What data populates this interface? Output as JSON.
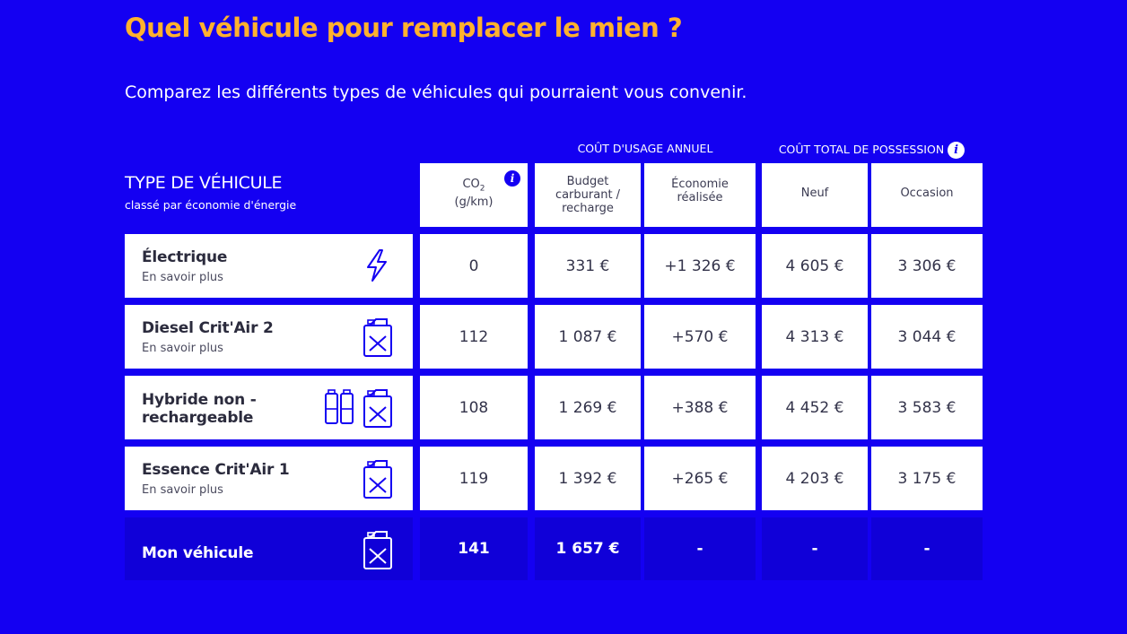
{
  "page": {
    "title": "Quel véhicule pour remplacer le mien ?",
    "subtitle": "Comparez les différents types de véhicules qui pourraient vous convenir."
  },
  "colors": {
    "background": "#1400f2",
    "title": "#ffb12e",
    "cell": "#ffffff",
    "mine_row": "#1000d8"
  },
  "groups": {
    "usage": "COÛT D'USAGE ANNUEL",
    "possession": "COÛT TOTAL DE POSSESSION"
  },
  "vehicle_type_header": {
    "title": "TYPE DE VÉHICULE",
    "subtitle": "classé par économie d'énergie"
  },
  "columns": {
    "co2_line1": "CO",
    "co2_sub": "2",
    "co2_line2": "(g/km)",
    "budget_line1": "Budget",
    "budget_line2": "carburant /",
    "budget_line3": "recharge",
    "economie_line1": "Économie",
    "economie_line2": "réalisée",
    "neuf": "Neuf",
    "occasion": "Occasion"
  },
  "rows": [
    {
      "name": "Électrique",
      "link": "En savoir plus",
      "icon": "lightning-icon",
      "co2": "0",
      "budget": "331 €",
      "economie": "+1 326 €",
      "neuf": "4 605 €",
      "occasion": "3 306 €"
    },
    {
      "name": "Diesel Crit'Air 2",
      "link": "En savoir plus",
      "icon": "fuel-can-icon",
      "co2": "112",
      "budget": "1 087 €",
      "economie": "+570 €",
      "neuf": "4 313 €",
      "occasion": "3 044 €"
    },
    {
      "name_line1": "Hybride non -",
      "name_line2": "rechargeable",
      "icon": "battery-fuel-can-icon",
      "co2": "108",
      "budget": "1 269 €",
      "economie": "+388 €",
      "neuf": "4 452 €",
      "occasion": "3 583 €"
    },
    {
      "name": "Essence Crit'Air 1",
      "link": "En savoir plus",
      "icon": "fuel-can-icon",
      "co2": "119",
      "budget": "1 392 €",
      "economie": "+265 €",
      "neuf": "4 203 €",
      "occasion": "3 175 €"
    }
  ],
  "mine": {
    "name": "Mon véhicule",
    "icon": "fuel-can-icon",
    "co2": "141",
    "budget": "1 657 €",
    "economie": "-",
    "neuf": "-",
    "occasion": "-"
  },
  "info_icon": "i"
}
